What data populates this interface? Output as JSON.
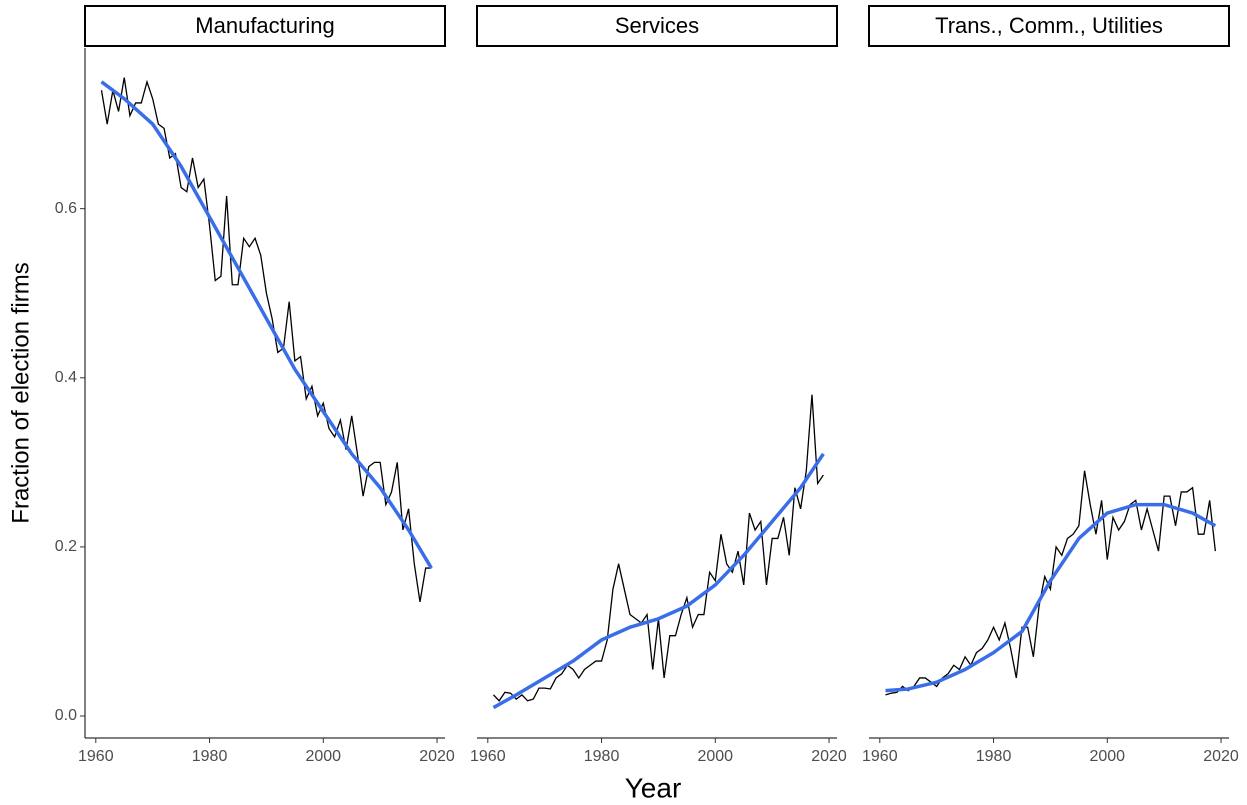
{
  "chart_data": {
    "type": "line",
    "xlabel": "Year",
    "ylabel": "Fraction of election firms",
    "xlim": [
      1958.1,
      2021.4
    ],
    "xticks": [
      1960,
      1980,
      2000,
      2020
    ],
    "ylim": [
      -0.026,
      0.79
    ],
    "yticks": [
      {
        "value": 0,
        "label": "0.0"
      },
      0.2,
      0.4,
      0.6
    ],
    "x": [
      1961,
      1962,
      1963,
      1964,
      1965,
      1966,
      1967,
      1968,
      1969,
      1970,
      1971,
      1972,
      1973,
      1974,
      1975,
      1976,
      1977,
      1978,
      1979,
      1980,
      1981,
      1982,
      1983,
      1984,
      1985,
      1986,
      1987,
      1988,
      1989,
      1990,
      1991,
      1992,
      1993,
      1994,
      1995,
      1996,
      1997,
      1998,
      1999,
      2000,
      2001,
      2002,
      2003,
      2004,
      2005,
      2006,
      2007,
      2008,
      2009,
      2010,
      2011,
      2012,
      2013,
      2014,
      2015,
      2016,
      2017,
      2018,
      2019
    ],
    "smooth_x": [
      1961,
      1965,
      1970,
      1975,
      1980,
      1985,
      1990,
      1995,
      2000,
      2005,
      2010,
      2015,
      2019
    ],
    "panels": [
      {
        "title": "Manufacturing",
        "series": [
          {
            "color": "#000000",
            "values": [
              0.74,
              0.7,
              0.74,
              0.715,
              0.755,
              0.71,
              0.725,
              0.725,
              0.75,
              0.73,
              0.7,
              0.695,
              0.66,
              0.665,
              0.625,
              0.62,
              0.66,
              0.625,
              0.635,
              0.58,
              0.515,
              0.52,
              0.615,
              0.51,
              0.51,
              0.565,
              0.555,
              0.565,
              0.545,
              0.5,
              0.47,
              0.43,
              0.435,
              0.49,
              0.42,
              0.425,
              0.375,
              0.39,
              0.355,
              0.37,
              0.34,
              0.33,
              0.35,
              0.315,
              0.355,
              0.31,
              0.26,
              0.295,
              0.3,
              0.3,
              0.25,
              0.265,
              0.3,
              0.22,
              0.245,
              0.18,
              0.135,
              0.175,
              0.175
            ]
          }
        ],
        "smooth": {
          "color": "#3a6ee8",
          "values": [
            0.75,
            0.73,
            0.7,
            0.65,
            0.59,
            0.53,
            0.47,
            0.41,
            0.36,
            0.31,
            0.27,
            0.22,
            0.175
          ]
        }
      },
      {
        "title": "Services",
        "series": [
          {
            "color": "#000000",
            "values": [
              0.025,
              0.018,
              0.028,
              0.027,
              0.02,
              0.025,
              0.018,
              0.02,
              0.033,
              0.033,
              0.032,
              0.045,
              0.05,
              0.06,
              0.055,
              0.045,
              0.055,
              0.06,
              0.065,
              0.065,
              0.09,
              0.15,
              0.18,
              0.15,
              0.12,
              0.115,
              0.11,
              0.12,
              0.055,
              0.115,
              0.045,
              0.095,
              0.095,
              0.12,
              0.14,
              0.105,
              0.12,
              0.12,
              0.17,
              0.16,
              0.215,
              0.18,
              0.17,
              0.195,
              0.155,
              0.24,
              0.22,
              0.23,
              0.155,
              0.21,
              0.21,
              0.235,
              0.19,
              0.27,
              0.245,
              0.29,
              0.38,
              0.275,
              0.285
            ]
          }
        ],
        "smooth": {
          "color": "#3a6ee8",
          "values": [
            0.01,
            0.025,
            0.045,
            0.065,
            0.09,
            0.105,
            0.115,
            0.13,
            0.155,
            0.19,
            0.23,
            0.27,
            0.31
          ]
        }
      },
      {
        "title": "Trans., Comm., Utilities",
        "series": [
          {
            "color": "#000000",
            "values": [
              0.025,
              0.027,
              0.028,
              0.035,
              0.03,
              0.035,
              0.045,
              0.045,
              0.04,
              0.035,
              0.045,
              0.05,
              0.06,
              0.055,
              0.07,
              0.06,
              0.075,
              0.08,
              0.09,
              0.105,
              0.09,
              0.11,
              0.08,
              0.045,
              0.105,
              0.105,
              0.07,
              0.13,
              0.165,
              0.15,
              0.2,
              0.19,
              0.21,
              0.215,
              0.225,
              0.29,
              0.25,
              0.215,
              0.255,
              0.185,
              0.235,
              0.22,
              0.23,
              0.25,
              0.255,
              0.22,
              0.245,
              0.22,
              0.195,
              0.26,
              0.26,
              0.225,
              0.265,
              0.265,
              0.27,
              0.215,
              0.215,
              0.255,
              0.195
            ]
          }
        ],
        "smooth": {
          "color": "#3a6ee8",
          "values": [
            0.03,
            0.032,
            0.04,
            0.055,
            0.075,
            0.1,
            0.16,
            0.21,
            0.24,
            0.25,
            0.25,
            0.24,
            0.225
          ]
        }
      }
    ]
  }
}
